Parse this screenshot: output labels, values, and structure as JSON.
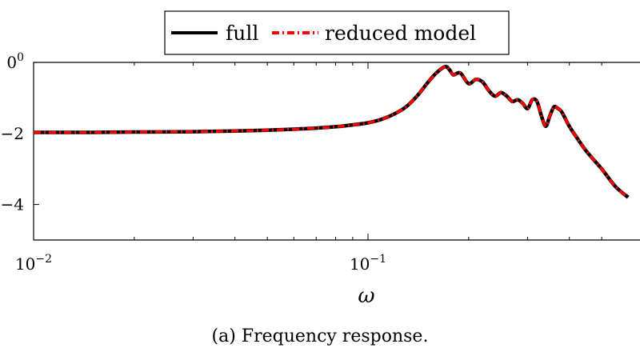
{
  "caption": "(a) Frequency response.",
  "chart_data": {
    "type": "line",
    "xscale": "log",
    "xlim": [
      0.01,
      0.6
    ],
    "ylim": [
      -5,
      0
    ],
    "xlabel": "ω",
    "ylabel": "",
    "legend_position": "top-center",
    "x_ticks": [
      {
        "value": 0.01,
        "base": "10",
        "exp": "−2"
      },
      {
        "value": 0.1,
        "base": "10",
        "exp": "−1"
      }
    ],
    "y_ticks": [
      {
        "value": 0,
        "base": "0",
        "exp": "0"
      },
      {
        "value": -2,
        "base": "−2",
        "exp": ""
      },
      {
        "value": -4,
        "base": "−4",
        "exp": ""
      }
    ],
    "series": [
      {
        "name": "full",
        "color": "#000000",
        "style": "solid",
        "x": [
          0.01,
          0.015,
          0.02,
          0.03,
          0.04,
          0.05,
          0.06,
          0.07,
          0.08,
          0.09,
          0.1,
          0.11,
          0.12,
          0.13,
          0.14,
          0.15,
          0.16,
          0.17,
          0.175,
          0.18,
          0.185,
          0.19,
          0.2,
          0.21,
          0.22,
          0.23,
          0.24,
          0.25,
          0.26,
          0.27,
          0.28,
          0.29,
          0.3,
          0.31,
          0.32,
          0.33,
          0.34,
          0.35,
          0.36,
          0.37,
          0.38,
          0.4,
          0.42,
          0.45,
          0.5,
          0.55,
          0.6
        ],
        "y": [
          -1.97,
          -1.97,
          -1.96,
          -1.95,
          -1.93,
          -1.91,
          -1.88,
          -1.85,
          -1.81,
          -1.76,
          -1.7,
          -1.6,
          -1.45,
          -1.25,
          -0.95,
          -0.6,
          -0.3,
          -0.12,
          -0.2,
          -0.35,
          -0.3,
          -0.32,
          -0.6,
          -0.48,
          -0.55,
          -0.8,
          -0.95,
          -0.85,
          -0.95,
          -1.1,
          -1.05,
          -1.15,
          -1.3,
          -1.05,
          -1.1,
          -1.5,
          -1.8,
          -1.5,
          -1.25,
          -1.3,
          -1.4,
          -1.8,
          -2.1,
          -2.5,
          -3.0,
          -3.5,
          -3.8
        ]
      },
      {
        "name": "reduced model",
        "color": "#ff0000",
        "style": "dash-dot",
        "x": [
          0.01,
          0.015,
          0.02,
          0.03,
          0.04,
          0.05,
          0.06,
          0.07,
          0.08,
          0.09,
          0.1,
          0.11,
          0.12,
          0.13,
          0.14,
          0.15,
          0.16,
          0.17,
          0.175,
          0.18,
          0.185,
          0.19,
          0.2,
          0.21,
          0.22,
          0.23,
          0.24,
          0.25,
          0.26,
          0.27,
          0.28,
          0.29,
          0.3,
          0.31,
          0.32,
          0.33,
          0.34,
          0.35,
          0.36,
          0.37,
          0.38,
          0.4,
          0.42,
          0.45,
          0.5,
          0.55,
          0.6
        ],
        "y": [
          -1.97,
          -1.97,
          -1.96,
          -1.95,
          -1.93,
          -1.91,
          -1.88,
          -1.85,
          -1.81,
          -1.76,
          -1.7,
          -1.6,
          -1.45,
          -1.25,
          -0.95,
          -0.6,
          -0.3,
          -0.12,
          -0.2,
          -0.35,
          -0.3,
          -0.32,
          -0.6,
          -0.48,
          -0.55,
          -0.8,
          -0.95,
          -0.85,
          -0.95,
          -1.1,
          -1.05,
          -1.15,
          -1.3,
          -1.05,
          -1.1,
          -1.5,
          -1.8,
          -1.5,
          -1.25,
          -1.3,
          -1.4,
          -1.8,
          -2.1,
          -2.5,
          -3.0,
          -3.5,
          -3.8
        ]
      }
    ]
  }
}
